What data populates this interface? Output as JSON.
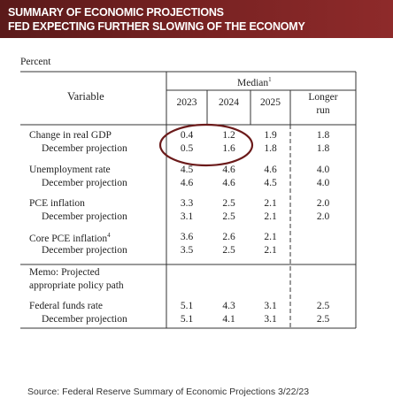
{
  "banner": {
    "line1": "SUMMARY OF ECONOMIC PROJECTIONS",
    "line2": "FED EXPECTING FURTHER SLOWING OF THE ECONOMY"
  },
  "unit_label": "Percent",
  "header": {
    "variable": "Variable",
    "median": "Median",
    "median_sup": "1",
    "years": [
      "2023",
      "2024",
      "2025"
    ],
    "longer_run_1": "Longer",
    "longer_run_2": "run"
  },
  "rows": [
    {
      "label": "Change in real GDP",
      "values": [
        "0.4",
        "1.2",
        "1.9",
        "1.8"
      ]
    },
    {
      "label": "December projection",
      "values": [
        "0.5",
        "1.6",
        "1.8",
        "1.8"
      ]
    },
    {
      "label": "Unemployment rate",
      "values": [
        "4.5",
        "4.6",
        "4.6",
        "4.0"
      ]
    },
    {
      "label": "December projection",
      "values": [
        "4.6",
        "4.6",
        "4.5",
        "4.0"
      ]
    },
    {
      "label": "PCE inflation",
      "values": [
        "3.3",
        "2.5",
        "2.1",
        "2.0"
      ]
    },
    {
      "label": "December projection",
      "values": [
        "3.1",
        "2.5",
        "2.1",
        "2.0"
      ]
    },
    {
      "label": "Core PCE inflation",
      "sup": "4",
      "values": [
        "3.6",
        "2.6",
        "2.1",
        ""
      ]
    },
    {
      "label": "December projection",
      "values": [
        "3.5",
        "2.5",
        "2.1",
        ""
      ]
    },
    {
      "label": "Memo: Projected",
      "values": [
        "",
        "",
        "",
        ""
      ]
    },
    {
      "label": "appropriate policy path",
      "values": [
        "",
        "",
        "",
        ""
      ]
    },
    {
      "label": "Federal funds rate",
      "values": [
        "5.1",
        "4.3",
        "3.1",
        "2.5"
      ]
    },
    {
      "label": "December projection",
      "values": [
        "5.1",
        "4.1",
        "3.1",
        "2.5"
      ]
    }
  ],
  "highlight_color": "#6b1a1a",
  "source": "Source: Federal Reserve Summary of Economic Projections 3/22/23"
}
